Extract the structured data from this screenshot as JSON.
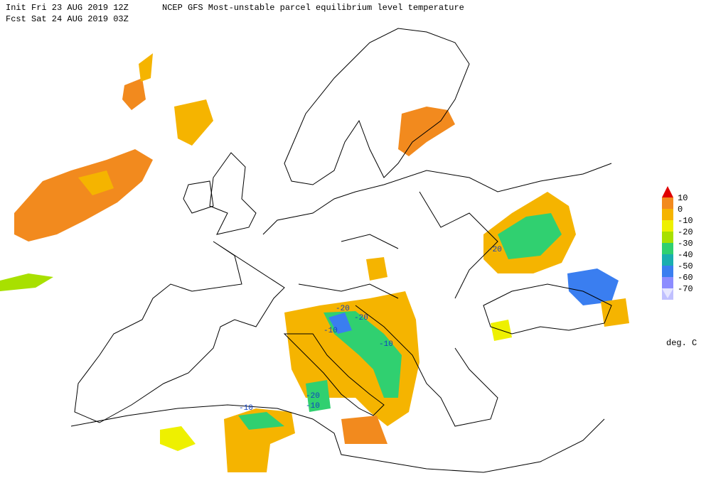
{
  "header": {
    "init": "Init  Fri 23 AUG 2019 12Z",
    "title": "NCEP GFS Most-unstable parcel equilibrium level temperature",
    "fcst": "Fcst Sat 24 AUG 2019 03Z"
  },
  "legend": {
    "labels": [
      10,
      0,
      -10,
      -20,
      -30,
      -40,
      -50,
      -60,
      -70
    ],
    "colors": [
      "#e00000",
      "#f28a1e",
      "#f5b400",
      "#eef000",
      "#a8e000",
      "#30d070",
      "#1aaeb0",
      "#3a7ef0",
      "#8c8cff",
      "#c0c0ff",
      "#e6e6ff"
    ],
    "units": "deg. C"
  },
  "map": {
    "contour_labels": [
      -20,
      -20,
      -10,
      -20,
      -10,
      -20,
      -10,
      -10
    ]
  }
}
